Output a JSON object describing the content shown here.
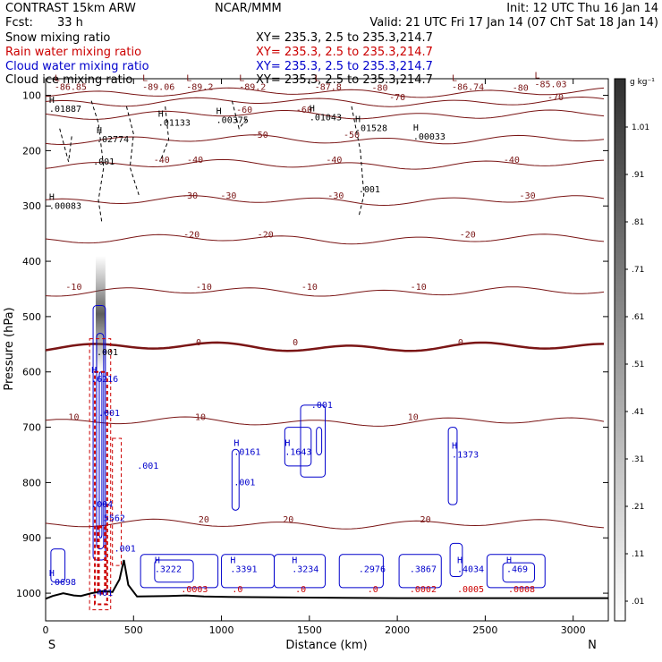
{
  "header": {
    "model": "CONTRAST 15km ARW",
    "org": "NCAR/MMM",
    "init": "Init: 12 UTC Thu 16 Jan 14",
    "fcst_label": "Fcst:",
    "fcst_value": "33 h",
    "valid": "Valid: 21 UTC Fri 17 Jan 14 (07 ChT Sat 18 Jan 14)"
  },
  "fields": [
    {
      "name": "Snow mixing ratio",
      "xy": "XY= 235.3,  2.5 to 235.3,214.7",
      "color": "#000000"
    },
    {
      "name": "Rain water mixing ratio",
      "xy": "XY= 235.3,  2.5 to 235.3,214.7",
      "color": "#cc0000"
    },
    {
      "name": "Cloud water mixing ratio",
      "xy": "XY= 235.3,  2.5 to 235.3,214.7",
      "color": "#0000cc"
    },
    {
      "name": "Cloud ice mixing ratio",
      "xy": "XY= 235.3,  2.5 to 235.3,214.7",
      "color": "#000000"
    }
  ],
  "chart_data": {
    "type": "contour cross-section",
    "xlabel": "Distance (km)",
    "ylabel": "Pressure (hPa)",
    "xlim": [
      0,
      3200
    ],
    "ylim": [
      1050,
      70
    ],
    "x_ticks": [
      0,
      500,
      1000,
      1500,
      2000,
      2500,
      3000
    ],
    "y_ticks": [
      100,
      200,
      300,
      400,
      500,
      600,
      700,
      800,
      900,
      1000
    ],
    "endpoint_left": "S",
    "endpoint_right": "N",
    "colorbar_unit": "g kg⁻¹",
    "colorbar_levels": [
      ".01",
      ".11",
      ".21",
      ".31",
      ".41",
      ".51",
      ".61",
      ".71",
      ".81",
      ".91",
      "1.01"
    ],
    "colors": {
      "temperature": "#7a1515",
      "rain": "#cc0000",
      "cloud_water": "#0000cc",
      "ice": "#000000"
    },
    "temperature_contours": [
      {
        "level": -80,
        "p": 95,
        "labels": [
          {
            "x": 1900,
            "text": "-80"
          },
          {
            "x": 2700,
            "text": "-80"
          }
        ]
      },
      {
        "level": -70,
        "p": 112,
        "labels": [
          {
            "x": 2000,
            "text": "-70"
          },
          {
            "x": 2900,
            "text": "-70"
          }
        ]
      },
      {
        "level": -60,
        "p": 135,
        "labels": [
          {
            "x": 1130,
            "text": "-60"
          },
          {
            "x": 1470,
            "text": "-60"
          }
        ]
      },
      {
        "level": -50,
        "p": 180,
        "labels": [
          {
            "x": 1220,
            "text": "-50"
          },
          {
            "x": 1740,
            "text": "-50"
          }
        ]
      },
      {
        "level": -40,
        "p": 225,
        "labels": [
          {
            "x": 660,
            "text": "-40"
          },
          {
            "x": 850,
            "text": "-40"
          },
          {
            "x": 1640,
            "text": "-40"
          },
          {
            "x": 2650,
            "text": "-40"
          }
        ]
      },
      {
        "level": -30,
        "p": 290,
        "labels": [
          {
            "x": 820,
            "text": "-30"
          },
          {
            "x": 1040,
            "text": "-30"
          },
          {
            "x": 1650,
            "text": "-30"
          },
          {
            "x": 2740,
            "text": "-30"
          }
        ]
      },
      {
        "level": -20,
        "p": 360,
        "labels": [
          {
            "x": 830,
            "text": "-20"
          },
          {
            "x": 1250,
            "text": "-20"
          },
          {
            "x": 2400,
            "text": "-20"
          }
        ]
      },
      {
        "level": -10,
        "p": 455,
        "labels": [
          {
            "x": 160,
            "text": "-10"
          },
          {
            "x": 900,
            "text": "-10"
          },
          {
            "x": 1500,
            "text": "-10"
          },
          {
            "x": 2120,
            "text": "-10"
          }
        ]
      },
      {
        "level": 0,
        "p": 555,
        "labels": [
          {
            "x": 870,
            "text": "0"
          },
          {
            "x": 1420,
            "text": "0"
          },
          {
            "x": 2360,
            "text": "0"
          }
        ]
      },
      {
        "level": 10,
        "p": 690,
        "labels": [
          {
            "x": 160,
            "text": "10"
          },
          {
            "x": 880,
            "text": "10"
          },
          {
            "x": 2090,
            "text": "10"
          }
        ]
      },
      {
        "level": 20,
        "p": 875,
        "labels": [
          {
            "x": 900,
            "text": "20"
          },
          {
            "x": 1380,
            "text": "20"
          },
          {
            "x": 2160,
            "text": "20"
          }
        ]
      }
    ],
    "minmax_labels": [
      {
        "x": 50,
        "p": 90,
        "kind": "L",
        "value": "-86.85"
      },
      {
        "x": 550,
        "p": 90,
        "kind": "L",
        "value": "-89.06"
      },
      {
        "x": 800,
        "p": 90,
        "kind": "L",
        "value": "-89.2"
      },
      {
        "x": 1100,
        "p": 90,
        "kind": "L",
        "value": "-89.2"
      },
      {
        "x": 1530,
        "p": 90,
        "kind": "L",
        "value": "-87.8"
      },
      {
        "x": 2310,
        "p": 90,
        "kind": "L",
        "value": "-86.74"
      },
      {
        "x": 2780,
        "p": 85,
        "kind": "L",
        "value": "-85.03"
      },
      {
        "x": 20,
        "p": 130,
        "kind": "H",
        "value": ".01887"
      },
      {
        "x": 640,
        "p": 155,
        "kind": "H",
        "value": ".01133"
      },
      {
        "x": 970,
        "p": 150,
        "kind": "H",
        "value": ".00375"
      },
      {
        "x": 1500,
        "p": 145,
        "kind": "H",
        "value": ".01043"
      },
      {
        "x": 1760,
        "p": 165,
        "kind": "H",
        "value": ".01528"
      },
      {
        "x": 2090,
        "p": 180,
        "kind": "H",
        "value": ".00033"
      },
      {
        "x": 290,
        "p": 185,
        "kind": "H",
        "value": ".02774"
      },
      {
        "x": 20,
        "p": 305,
        "kind": "H",
        "value": ".00083"
      },
      {
        "x": 270,
        "p": 225,
        "kind": "",
        "value": ".001"
      },
      {
        "x": 1780,
        "p": 275,
        "kind": "",
        "value": ".001"
      },
      {
        "x": 260,
        "p": 618,
        "kind": "H",
        "value": ".6216"
      },
      {
        "x": 290,
        "p": 570,
        "kind": "",
        "value": ".001"
      },
      {
        "x": 300,
        "p": 680,
        "kind": "",
        "value": ".001"
      },
      {
        "x": 520,
        "p": 775,
        "kind": "",
        "value": ".001"
      },
      {
        "x": 1070,
        "p": 750,
        "kind": "H",
        "value": ".0161"
      },
      {
        "x": 1070,
        "p": 805,
        "kind": "",
        "value": ".001"
      },
      {
        "x": 1360,
        "p": 750,
        "kind": "H",
        "value": ".1643"
      },
      {
        "x": 1510,
        "p": 665,
        "kind": "",
        "value": ".001"
      },
      {
        "x": 2310,
        "p": 755,
        "kind": "H",
        "value": ".1373"
      },
      {
        "x": 20,
        "p": 985,
        "kind": "H",
        "value": ".0698"
      },
      {
        "x": 260,
        "p": 845,
        "kind": "",
        "value": ".004"
      },
      {
        "x": 330,
        "p": 870,
        "kind": "",
        "value": "5562"
      },
      {
        "x": 390,
        "p": 925,
        "kind": "",
        "value": ".001"
      },
      {
        "x": 260,
        "p": 1005,
        "kind": "",
        "value": ".401"
      },
      {
        "x": 620,
        "p": 962,
        "kind": "H",
        "value": ".3222"
      },
      {
        "x": 1050,
        "p": 962,
        "kind": "H",
        "value": ".3391"
      },
      {
        "x": 770,
        "p": 998,
        "kind": "",
        "value": ".0003"
      },
      {
        "x": 1060,
        "p": 998,
        "kind": "",
        "value": ".0"
      },
      {
        "x": 1400,
        "p": 962,
        "kind": "H",
        "value": ".3234"
      },
      {
        "x": 1420,
        "p": 998,
        "kind": "",
        "value": ".0"
      },
      {
        "x": 1780,
        "p": 962,
        "kind": "",
        "value": ".2976"
      },
      {
        "x": 1830,
        "p": 998,
        "kind": "",
        "value": ".0"
      },
      {
        "x": 2070,
        "p": 962,
        "kind": "",
        "value": ".3867"
      },
      {
        "x": 2070,
        "p": 998,
        "kind": "",
        "value": ".0002"
      },
      {
        "x": 2340,
        "p": 962,
        "kind": "H",
        "value": ".4034"
      },
      {
        "x": 2340,
        "p": 998,
        "kind": "",
        "value": ".0005"
      },
      {
        "x": 2620,
        "p": 962,
        "kind": "H",
        "value": ".469"
      },
      {
        "x": 2630,
        "p": 998,
        "kind": "",
        "value": ".0008"
      }
    ]
  }
}
